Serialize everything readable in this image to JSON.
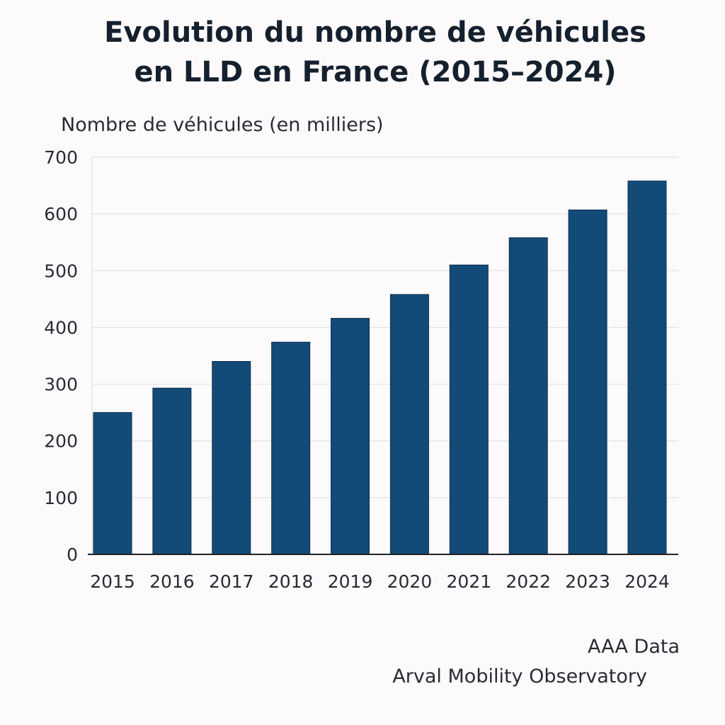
{
  "chart_data": {
    "type": "bar",
    "title_lines": [
      "Evolution du nombre de véhicules",
      "en LLD en France (2015–2024)"
    ],
    "ylabel": "Nombre de véhicules (en milliers)",
    "xlabel": "",
    "categories": [
      "2015",
      "2016",
      "2017",
      "2018",
      "2019",
      "2020",
      "2021",
      "2022",
      "2023",
      "2024"
    ],
    "values": [
      250,
      293,
      340,
      374,
      416,
      458,
      510,
      558,
      607,
      658
    ],
    "ylim": [
      0,
      700
    ],
    "yticks": [
      0,
      100,
      200,
      300,
      400,
      500,
      600,
      700
    ],
    "grid": true,
    "bar_color": "#124a78",
    "bar_edge_color": "#0d2f4f"
  },
  "sources": [
    "AAA Data",
    "Arval Mobility Observatory"
  ]
}
